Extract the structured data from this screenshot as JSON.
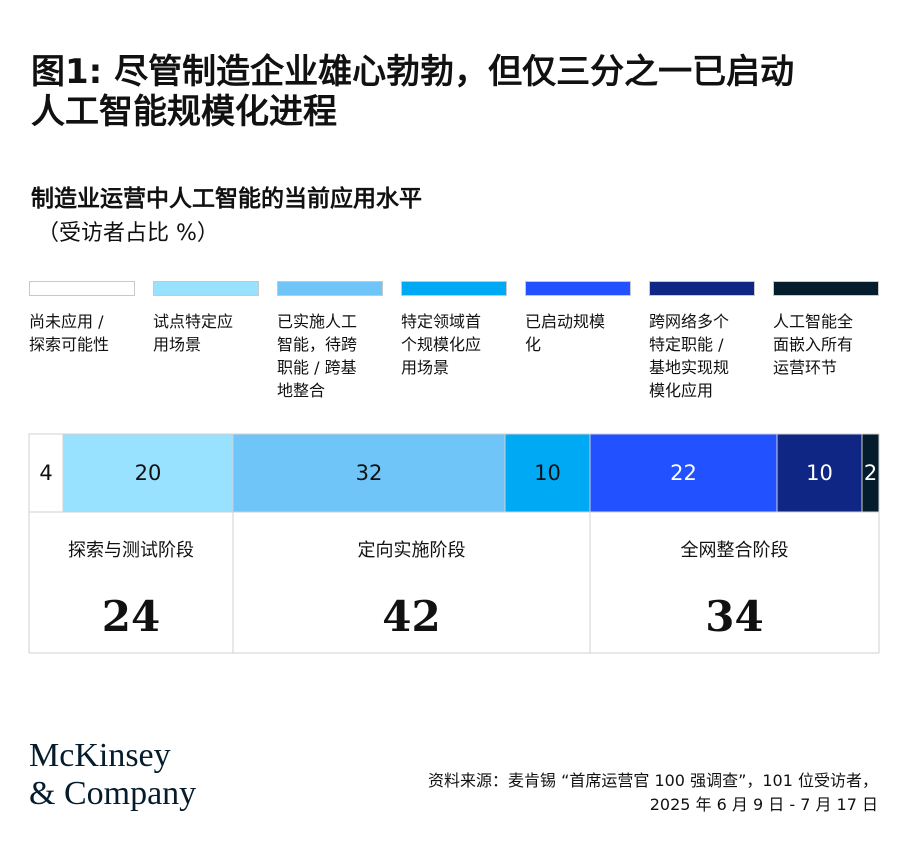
{
  "title": [
    "图1: 尽管制造企业雄心勃勃，但仅三分之一已启动",
    "人工智能规模化进程"
  ],
  "subtitle": "制造业运营中人工智能的当前应用水平",
  "unit": "（受访者占比 %）",
  "chart_data": {
    "type": "bar",
    "orientation": "horizontal-stacked-100",
    "categories": [
      "尚未应用 / 探索可能性",
      "试点特定应用场景",
      "已实施人工智能，待跨职能 / 跨基地整合",
      "特定领域首个规模化应用场景",
      "已启动规模化",
      "跨网络多个特定职能 / 基地实现规模化应用",
      "人工智能全面嵌入所有运营环节"
    ],
    "legend_lines": [
      [
        "尚未应用 /",
        "探索可能性"
      ],
      [
        "试点特定应",
        "用场景"
      ],
      [
        "已实施人工",
        "智能，待跨",
        "职能 / 跨基",
        "地整合"
      ],
      [
        "特定领域首",
        "个规模化应",
        "用场景"
      ],
      [
        "已启动规模",
        "化"
      ],
      [
        "跨网络多个",
        "特定职能 /",
        "基地实现规",
        "模化应用"
      ],
      [
        "人工智能全",
        "面嵌入所有",
        "运营环节"
      ]
    ],
    "values": [
      4,
      20,
      32,
      10,
      22,
      10,
      2
    ],
    "colors": [
      "#ffffff",
      "#99e2ff",
      "#6fc5f7",
      "#00a9f4",
      "#2251ff",
      "#0f2685",
      "#051c2c"
    ],
    "label_colors": [
      "#111111",
      "#111111",
      "#111111",
      "#111111",
      "#ffffff",
      "#ffffff",
      "#ffffff"
    ],
    "phases": [
      {
        "name": "探索与测试阶段",
        "value": 24
      },
      {
        "name": "定向实施阶段",
        "value": 42
      },
      {
        "name": "全网整合阶段",
        "value": 34
      }
    ]
  },
  "logo": [
    "McKinsey",
    "& Company"
  ],
  "source": [
    "资料来源：麦肯锡 “首席运营官 100 强调查”，101 位受访者，",
    "2025 年 6 月 9 日 - 7 月 17 日"
  ]
}
